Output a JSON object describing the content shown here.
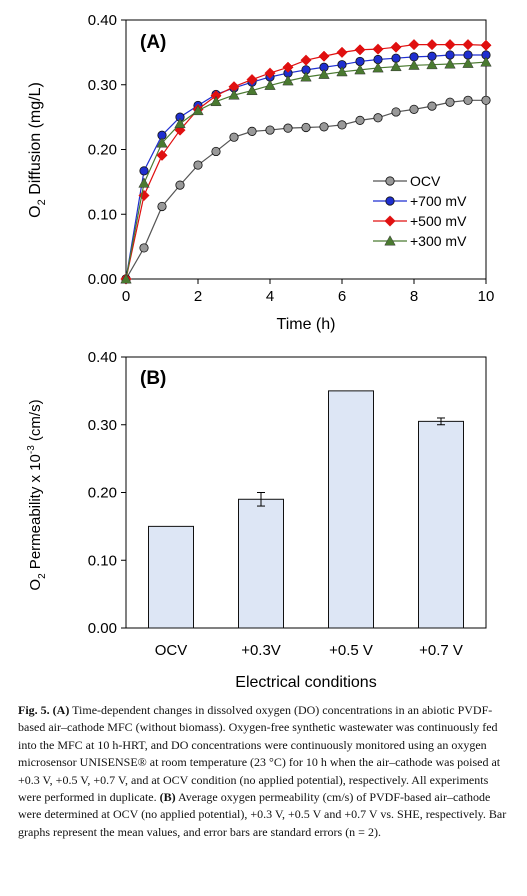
{
  "chart_data": [
    {
      "panel_label": "(A)",
      "type": "line",
      "xlabel": "Time (h)",
      "ylabel_main": "O",
      "ylabel_sub": "2",
      "ylabel_rest": " Diffusion (mg/L)",
      "xlim": [
        0,
        10
      ],
      "ylim": [
        0,
        0.4
      ],
      "xticks": [
        "0",
        "2",
        "4",
        "6",
        "8",
        "10"
      ],
      "yticks": [
        "0.00",
        "0.10",
        "0.20",
        "0.30",
        "0.40"
      ],
      "legend_position": "lower-right",
      "x": [
        0,
        0.5,
        1,
        1.5,
        2,
        2.5,
        3,
        3.5,
        4,
        4.5,
        5,
        5.5,
        6,
        6.5,
        7,
        7.5,
        8,
        8.5,
        9,
        9.5,
        10
      ],
      "series": [
        {
          "name": "OCV",
          "marker": "circle",
          "color": "#999999",
          "line_color": "#555555",
          "values": [
            0.0,
            0.048,
            0.112,
            0.145,
            0.176,
            0.197,
            0.219,
            0.228,
            0.23,
            0.233,
            0.234,
            0.235,
            0.238,
            0.245,
            0.249,
            0.258,
            0.262,
            0.267,
            0.273,
            0.276,
            0.276
          ]
        },
        {
          "name": "+700 mV",
          "marker": "circle",
          "color": "#1f2fd0",
          "line_color": "#1f2fd0",
          "values": [
            0.0,
            0.167,
            0.222,
            0.25,
            0.268,
            0.285,
            0.295,
            0.304,
            0.312,
            0.318,
            0.323,
            0.327,
            0.331,
            0.336,
            0.339,
            0.341,
            0.343,
            0.344,
            0.346,
            0.346,
            0.346
          ]
        },
        {
          "name": "+500 mV",
          "marker": "diamond",
          "color": "#e01010",
          "line_color": "#e01010",
          "values": [
            0.0,
            0.129,
            0.191,
            0.23,
            0.262,
            0.283,
            0.297,
            0.308,
            0.318,
            0.327,
            0.338,
            0.344,
            0.35,
            0.354,
            0.355,
            0.358,
            0.362,
            0.362,
            0.362,
            0.362,
            0.361
          ]
        },
        {
          "name": "+300 mV",
          "marker": "triangle",
          "color": "#4a7a30",
          "line_color": "#4a7a30",
          "values": [
            0.0,
            0.148,
            0.21,
            0.24,
            0.26,
            0.274,
            0.284,
            0.291,
            0.299,
            0.306,
            0.312,
            0.316,
            0.32,
            0.323,
            0.326,
            0.328,
            0.33,
            0.331,
            0.332,
            0.333,
            0.335
          ]
        }
      ]
    },
    {
      "panel_label": "(B)",
      "type": "bar",
      "xlabel": "Electrical conditions",
      "ylabel_main": "O",
      "ylabel_sub": "2",
      "ylabel_rest": " Permeability x 10",
      "ylabel_exp": "-3",
      "ylabel_unit": " (cm/s)",
      "ylim": [
        0,
        0.4
      ],
      "yticks": [
        "0.00",
        "0.10",
        "0.20",
        "0.30",
        "0.40"
      ],
      "categories": [
        "OCV",
        "+0.3V",
        "+0.5 V",
        "+0.7 V"
      ],
      "values": [
        0.15,
        0.19,
        0.35,
        0.305
      ],
      "errors": [
        0.0,
        0.01,
        0.0,
        0.005
      ],
      "bar_color": "#dde6f5",
      "bar_edge": "#111111"
    }
  ],
  "caption": {
    "fig_label": "Fig. 5.",
    "part_a_label": "(A)",
    "part_a_text": " Time-dependent changes in dissolved oxygen (DO) concentrations in an abiotic PVDF-based air–cathode MFC (without biomass). Oxygen-free synthetic wastewater was continuously fed into the MFC at 10 h-HRT, and DO concentrations were continuously monitored using an oxygen microsensor UNISENSE® at room temperature (23 °C) for 10 h when the air–cathode was poised at +0.3 V, +0.5 V, +0.7 V, and at OCV condition (no applied potential), respectively. All experiments were performed in duplicate. ",
    "part_b_label": "(B)",
    "part_b_text": " Average oxygen permeability (cm/s) of PVDF-based air–cathode were determined at OCV (no applied potential), +0.3 V, +0.5 V and +0.7 V vs. SHE, respectively. Bar graphs represent the mean values, and error bars are standard errors (n = 2)."
  }
}
